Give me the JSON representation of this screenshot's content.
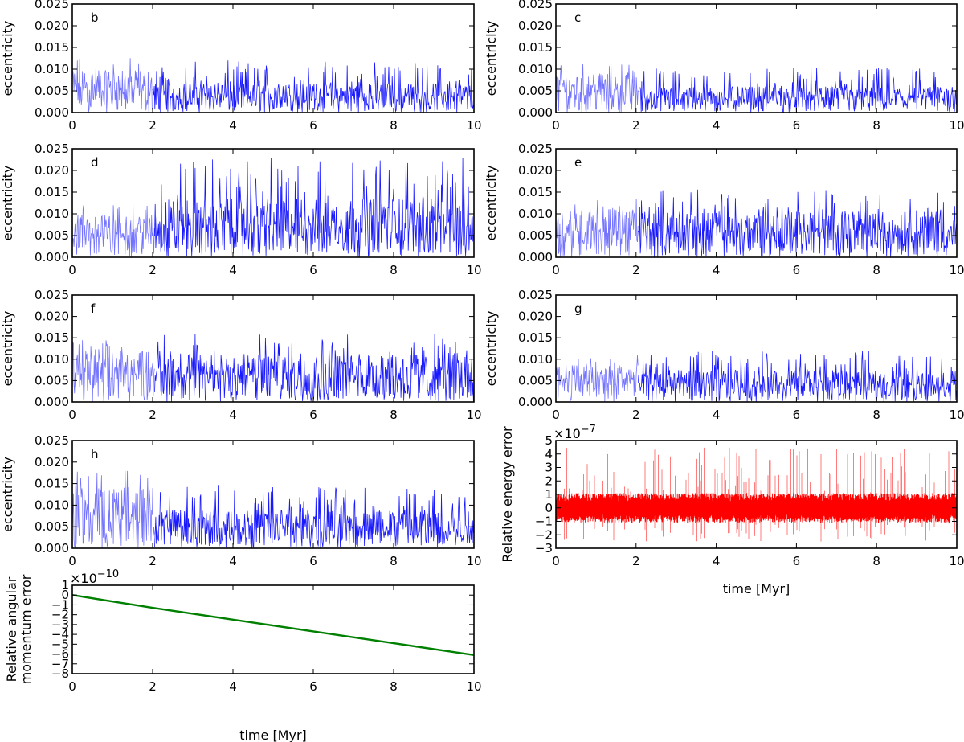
{
  "chart_data": [
    {
      "type": "line",
      "panel": "b",
      "label": "b",
      "ylabel": "eccentricity",
      "xlim": [
        0,
        10
      ],
      "ylim": [
        0,
        0.025
      ],
      "xticks": [
        "0",
        "2",
        "4",
        "6",
        "8",
        "10"
      ],
      "yticks": [
        "0.000",
        "0.005",
        "0.010",
        "0.015",
        "0.020",
        "0.025"
      ],
      "series": [
        {
          "name": "b",
          "color": "#0000ff",
          "segments": [
            {
              "x": [
                0,
                2
              ],
              "mean": 0.0065,
              "max": 0.013
            },
            {
              "x": [
                2,
                10
              ],
              "mean": 0.0045,
              "max": 0.012
            }
          ]
        }
      ]
    },
    {
      "type": "line",
      "panel": "c",
      "label": "c",
      "ylabel": "eccentricity",
      "xlim": [
        0,
        10
      ],
      "ylim": [
        0,
        0.025
      ],
      "xticks": [
        "0",
        "2",
        "4",
        "6",
        "8",
        "10"
      ],
      "yticks": [
        "0.000",
        "0.005",
        "0.010",
        "0.015",
        "0.020",
        "0.025"
      ],
      "series": [
        {
          "name": "c",
          "color": "#0000ff",
          "segments": [
            {
              "x": [
                0,
                2.1
              ],
              "mean": 0.006,
              "max": 0.012
            },
            {
              "x": [
                2.1,
                10
              ],
              "mean": 0.004,
              "max": 0.0105
            }
          ]
        }
      ]
    },
    {
      "type": "line",
      "panel": "d",
      "label": "d",
      "ylabel": "eccentricity",
      "xlim": [
        0,
        10
      ],
      "ylim": [
        0,
        0.025
      ],
      "xticks": [
        "0",
        "2",
        "4",
        "6",
        "8",
        "10"
      ],
      "yticks": [
        "0.000",
        "0.005",
        "0.010",
        "0.015",
        "0.020",
        "0.025"
      ],
      "series": [
        {
          "name": "d",
          "color": "#0000ff",
          "segments": [
            {
              "x": [
                0,
                2.05
              ],
              "mean": 0.0065,
              "max": 0.0125
            },
            {
              "x": [
                2.05,
                10
              ],
              "mean": 0.009,
              "max": 0.023
            }
          ]
        }
      ]
    },
    {
      "type": "line",
      "panel": "e",
      "label": "e",
      "ylabel": "eccentricity",
      "xlim": [
        0,
        10
      ],
      "ylim": [
        0,
        0.025
      ],
      "xticks": [
        "0",
        "2",
        "4",
        "6",
        "8",
        "10"
      ],
      "yticks": [
        "0.000",
        "0.005",
        "0.010",
        "0.015",
        "0.020",
        "0.025"
      ],
      "series": [
        {
          "name": "e",
          "color": "#0000ff",
          "segments": [
            {
              "x": [
                0,
                2.05
              ],
              "mean": 0.0075,
              "max": 0.0135
            },
            {
              "x": [
                2.05,
                10
              ],
              "mean": 0.007,
              "max": 0.016
            }
          ]
        }
      ]
    },
    {
      "type": "line",
      "panel": "f",
      "label": "f",
      "ylabel": "eccentricity",
      "xlim": [
        0,
        10
      ],
      "ylim": [
        0,
        0.025
      ],
      "xticks": [
        "0",
        "2",
        "4",
        "6",
        "8",
        "10"
      ],
      "yticks": [
        "0.000",
        "0.005",
        "0.010",
        "0.015",
        "0.020",
        "0.025"
      ],
      "series": [
        {
          "name": "f",
          "color": "#0000ff",
          "segments": [
            {
              "x": [
                0,
                2.05
              ],
              "mean": 0.008,
              "max": 0.0145
            },
            {
              "x": [
                2.05,
                10
              ],
              "mean": 0.0075,
              "max": 0.016
            }
          ]
        }
      ]
    },
    {
      "type": "line",
      "panel": "g",
      "label": "g",
      "ylabel": "eccentricity",
      "xlim": [
        0,
        10
      ],
      "ylim": [
        0,
        0.025
      ],
      "xticks": [
        "0",
        "2",
        "4",
        "6",
        "8",
        "10"
      ],
      "yticks": [
        "0.000",
        "0.005",
        "0.010",
        "0.015",
        "0.020",
        "0.025"
      ],
      "series": [
        {
          "name": "g",
          "color": "#0000ff",
          "segments": [
            {
              "x": [
                0,
                2.05
              ],
              "mean": 0.006,
              "max": 0.011
            },
            {
              "x": [
                2.05,
                10
              ],
              "mean": 0.005,
              "max": 0.012
            }
          ]
        }
      ]
    },
    {
      "type": "line",
      "panel": "h",
      "label": "h",
      "ylabel": "eccentricity",
      "xlim": [
        0,
        10
      ],
      "ylim": [
        0,
        0.025
      ],
      "xticks": [
        "0",
        "2",
        "4",
        "6",
        "8",
        "10"
      ],
      "yticks": [
        "0.000",
        "0.005",
        "0.010",
        "0.015",
        "0.020",
        "0.025"
      ],
      "series": [
        {
          "name": "h",
          "color": "#0000ff",
          "segments": [
            {
              "x": [
                0,
                2.05
              ],
              "mean": 0.0095,
              "max": 0.018
            },
            {
              "x": [
                2.05,
                10
              ],
              "mean": 0.006,
              "max": 0.015
            }
          ]
        }
      ]
    },
    {
      "type": "line",
      "panel": "energy",
      "label": "",
      "ylabel": "Relative energy error",
      "xlabel": "time [Myr]",
      "xlim": [
        0,
        10
      ],
      "ylim": [
        -3,
        5
      ],
      "exponent_base": "×10",
      "exponent_power": "−7",
      "xticks": [
        "0",
        "2",
        "4",
        "6",
        "8",
        "10"
      ],
      "yticks": [
        "−3",
        "−2",
        "−1",
        "0",
        "1",
        "2",
        "3",
        "4",
        "5"
      ],
      "series": [
        {
          "name": "relative energy error",
          "color": "#ff0000",
          "mean": 0,
          "band": [
            -1,
            1
          ],
          "spikes_max": 4.5,
          "spikes_min": -2.5
        }
      ]
    },
    {
      "type": "line",
      "panel": "angmom",
      "label": "",
      "ylabel": "Relative angular\nmomentum error",
      "xlabel": "time [Myr]",
      "xlim": [
        0,
        10
      ],
      "ylim": [
        -8,
        1
      ],
      "exponent_base": "×10",
      "exponent_power": "−10",
      "xticks": [
        "0",
        "2",
        "4",
        "6",
        "8",
        "10"
      ],
      "yticks": [
        "1",
        "0",
        "−1",
        "−2",
        "−3",
        "−4",
        "−5",
        "−6",
        "−7",
        "−8"
      ],
      "series": [
        {
          "name": "relative angular momentum error",
          "color": "#008000",
          "x": [
            0,
            2,
            4,
            6,
            8,
            10
          ],
          "y": [
            0,
            -1.3,
            -2.5,
            -3.7,
            -4.9,
            -6.1
          ]
        }
      ]
    }
  ]
}
